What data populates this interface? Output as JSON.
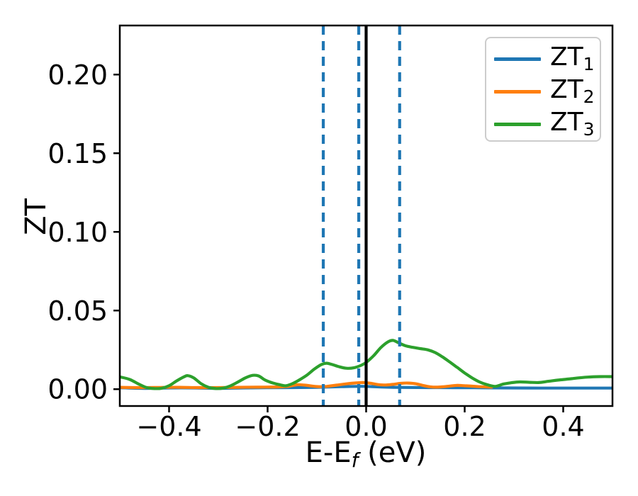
{
  "chart_data": {
    "type": "line",
    "title": "",
    "ylabel": "ZT",
    "xlabel": {
      "text": "E-E",
      "sub": "f",
      "suffix": " (eV)"
    },
    "xlim": [
      -0.5,
      0.5
    ],
    "ylim": [
      -0.0107,
      0.2312
    ],
    "grid": false,
    "xticks": {
      "values": [
        -0.4,
        -0.2,
        0.0,
        0.2,
        0.4
      ],
      "labels": [
        "−0.4",
        "−0.2",
        "0.0",
        "0.2",
        "0.4"
      ]
    },
    "yticks": {
      "values": [
        0.0,
        0.05,
        0.1,
        0.15,
        0.2
      ],
      "labels": [
        "0.00",
        "0.05",
        "0.10",
        "0.15",
        "0.20"
      ]
    },
    "legend": {
      "position": "upper right"
    },
    "vlines": [
      {
        "x": 0.0,
        "color": "#000000",
        "style": "solid",
        "name": "fermi-level-line"
      },
      {
        "x": -0.087,
        "color": "#1f77b4",
        "style": "dashed",
        "name": "chem-potential-line-1"
      },
      {
        "x": -0.015,
        "color": "#1f77b4",
        "style": "dashed",
        "name": "chem-potential-line-2"
      },
      {
        "x": 0.068,
        "color": "#1f77b4",
        "style": "dashed",
        "name": "chem-potential-line-3"
      }
    ],
    "series": [
      {
        "name": "zt1",
        "label": "ZT",
        "label_sub": "1",
        "color": "#1f77b4",
        "x": [
          -0.5,
          -0.45,
          -0.4,
          -0.35,
          -0.3,
          -0.25,
          -0.2,
          -0.15,
          -0.1,
          -0.05,
          -0.02,
          0.0,
          0.03,
          0.08,
          0.15,
          0.22,
          0.28,
          0.35,
          0.42,
          0.5
        ],
        "y": [
          0.0009,
          0.0005,
          0.0008,
          0.0008,
          0.0005,
          0.0008,
          0.0009,
          0.001,
          0.0012,
          0.0016,
          0.0018,
          0.0018,
          0.0014,
          0.0011,
          0.001,
          0.0009,
          0.0008,
          0.0007,
          0.0007,
          0.0007
        ]
      },
      {
        "name": "zt2",
        "label": "ZT",
        "label_sub": "2",
        "color": "#ff7f0e",
        "x": [
          -0.5,
          -0.46,
          -0.42,
          -0.38,
          -0.34,
          -0.3,
          -0.26,
          -0.22,
          -0.18,
          -0.158,
          -0.14,
          -0.125,
          -0.11,
          -0.095,
          -0.08,
          -0.06,
          -0.04,
          -0.02,
          -0.005,
          0.01,
          0.025,
          0.04,
          0.055,
          0.07,
          0.085,
          0.1,
          0.115,
          0.13,
          0.142,
          0.155,
          0.17,
          0.185,
          0.2,
          0.215,
          0.23,
          0.245,
          0.255
        ],
        "y": [
          0.0012,
          0.001,
          0.0011,
          0.0012,
          0.001,
          0.001,
          0.0012,
          0.0013,
          0.0014,
          0.0018,
          0.0028,
          0.0026,
          0.002,
          0.0016,
          0.0018,
          0.0026,
          0.0034,
          0.004,
          0.0042,
          0.0037,
          0.0029,
          0.0027,
          0.0031,
          0.0037,
          0.0039,
          0.0035,
          0.0024,
          0.0015,
          0.0013,
          0.0015,
          0.002,
          0.0024,
          0.0022,
          0.0019,
          0.0016,
          0.0014,
          0.0013
        ]
      },
      {
        "name": "zt3",
        "label": "ZT",
        "label_sub": "3",
        "color": "#2ca02c",
        "x": [
          -0.5,
          -0.48,
          -0.46,
          -0.445,
          -0.43,
          -0.415,
          -0.4,
          -0.385,
          -0.37,
          -0.362,
          -0.35,
          -0.335,
          -0.32,
          -0.305,
          -0.29,
          -0.275,
          -0.26,
          -0.245,
          -0.23,
          -0.218,
          -0.205,
          -0.19,
          -0.175,
          -0.163,
          -0.15,
          -0.135,
          -0.12,
          -0.105,
          -0.09,
          -0.08,
          -0.068,
          -0.055,
          -0.04,
          -0.025,
          -0.01,
          0.0,
          0.015,
          0.03,
          0.045,
          0.055,
          0.065,
          0.08,
          0.095,
          0.11,
          0.125,
          0.14,
          0.155,
          0.17,
          0.185,
          0.2,
          0.215,
          0.23,
          0.245,
          0.262,
          0.278,
          0.295,
          0.312,
          0.33,
          0.35,
          0.37,
          0.39,
          0.42,
          0.45,
          0.475,
          0.5
        ],
        "y": [
          0.0078,
          0.0062,
          0.003,
          0.001,
          0.0004,
          0.0006,
          0.0022,
          0.0052,
          0.0078,
          0.0086,
          0.0072,
          0.0035,
          0.0012,
          0.0004,
          0.0007,
          0.0022,
          0.0046,
          0.0072,
          0.0088,
          0.0084,
          0.0058,
          0.004,
          0.0028,
          0.0022,
          0.0035,
          0.006,
          0.009,
          0.0128,
          0.0158,
          0.0165,
          0.0156,
          0.0143,
          0.0133,
          0.0136,
          0.0152,
          0.017,
          0.0212,
          0.0265,
          0.0302,
          0.031,
          0.0296,
          0.0276,
          0.0266,
          0.0258,
          0.025,
          0.0233,
          0.0205,
          0.0172,
          0.0138,
          0.0103,
          0.0072,
          0.0046,
          0.0029,
          0.0018,
          0.0032,
          0.0041,
          0.0046,
          0.0044,
          0.0042,
          0.005,
          0.0058,
          0.0068,
          0.0077,
          0.008,
          0.008
        ]
      }
    ],
    "colors": {
      "axes": "#000000",
      "tick_labels": "#000000",
      "legend_border": "#cccccc"
    }
  }
}
